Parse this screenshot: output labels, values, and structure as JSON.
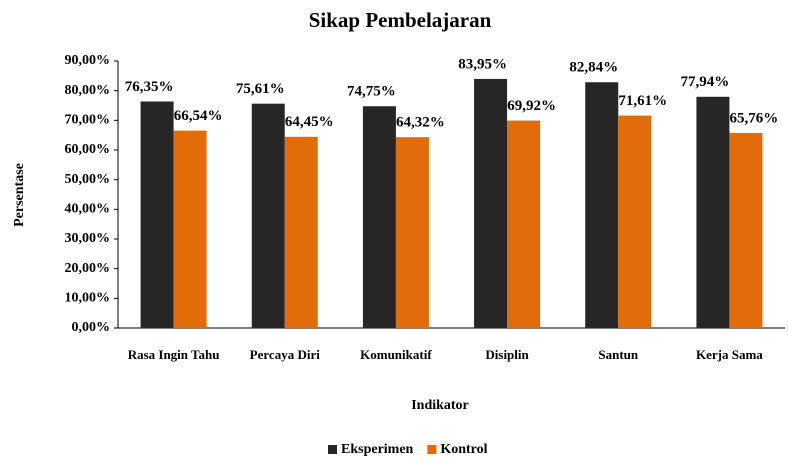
{
  "chart_data": {
    "type": "bar",
    "title": "Sikap Pembelajaran",
    "x_label": "Indikator",
    "y_label": "Persentase",
    "categories": [
      "Rasa Ingin Tahu",
      "Percaya Diri",
      "Komunikatif",
      "Disiplin",
      "Santun",
      "Kerja Sama"
    ],
    "series": [
      {
        "name": "Eksperimen",
        "color": "#262626",
        "values": [
          76.35,
          75.61,
          74.75,
          83.95,
          82.84,
          77.94
        ],
        "value_labels": [
          "76,35%",
          "75,61%",
          "74,75%",
          "83,95%",
          "82,84%",
          "77,94%"
        ]
      },
      {
        "name": "Kontrol",
        "color": "#e36c0a",
        "values": [
          66.54,
          64.45,
          64.32,
          69.92,
          71.61,
          65.76
        ],
        "value_labels": [
          "66,54%",
          "64,45%",
          "64,32%",
          "69,92%",
          "71,61%",
          "65,76%"
        ]
      }
    ],
    "ylim": [
      0,
      90
    ],
    "yticks": [
      {
        "value": 0,
        "label": "0,00%"
      },
      {
        "value": 10,
        "label": "10,00%"
      },
      {
        "value": 20,
        "label": "20,00%"
      },
      {
        "value": 30,
        "label": "30,00%"
      },
      {
        "value": 40,
        "label": "40,00%"
      },
      {
        "value": 50,
        "label": "50,00%"
      },
      {
        "value": 60,
        "label": "60,00%"
      },
      {
        "value": 70,
        "label": "70,00%"
      },
      {
        "value": 80,
        "label": "80,00%"
      },
      {
        "value": 90,
        "label": "90,00%"
      }
    ],
    "legend": "bottom"
  }
}
